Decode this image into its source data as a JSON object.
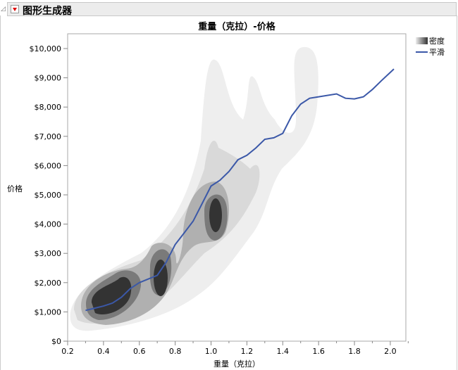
{
  "header": {
    "title": "图形生成器"
  },
  "chart_data": {
    "type": "line",
    "title": "重量（克拉）-价格",
    "xlabel": "重量（克拉）",
    "ylabel": "价格",
    "xlim": [
      0.2,
      2.086
    ],
    "ylim": [
      0,
      10000
    ],
    "xticks": [
      "0.2",
      "0.4",
      "0.6",
      "0.8",
      "1.0",
      "1.2",
      "1.4",
      "1.6",
      "1.8",
      "2.0"
    ],
    "yticks": [
      "$0",
      "$1,000",
      "$2,000",
      "$3,000",
      "$4,000",
      "$5,000",
      "$6,000",
      "$7,000",
      "$8,000",
      "$9,000",
      "$10,000"
    ],
    "legend": {
      "position": "top-right",
      "entries": [
        "密度",
        "平滑"
      ]
    },
    "grid": false,
    "colors": {
      "smooth": "#3b58a8",
      "density": "#333333"
    },
    "series": [
      {
        "name": "平滑",
        "x": [
          0.3,
          0.4,
          0.45,
          0.5,
          0.55,
          0.6,
          0.7,
          0.75,
          0.8,
          0.85,
          0.9,
          0.95,
          1.0,
          1.05,
          1.1,
          1.15,
          1.2,
          1.25,
          1.3,
          1.35,
          1.4,
          1.45,
          1.5,
          1.55,
          1.6,
          1.7,
          1.75,
          1.8,
          1.85,
          1.9,
          1.95,
          2.02
        ],
        "y": [
          1050,
          1200,
          1300,
          1500,
          1800,
          2000,
          2250,
          2700,
          3300,
          3700,
          4100,
          4700,
          5300,
          5500,
          5800,
          6200,
          6350,
          6600,
          6900,
          6950,
          7100,
          7700,
          8100,
          8300,
          8350,
          8450,
          8300,
          8280,
          8350,
          8600,
          8900,
          9300
        ]
      }
    ]
  }
}
